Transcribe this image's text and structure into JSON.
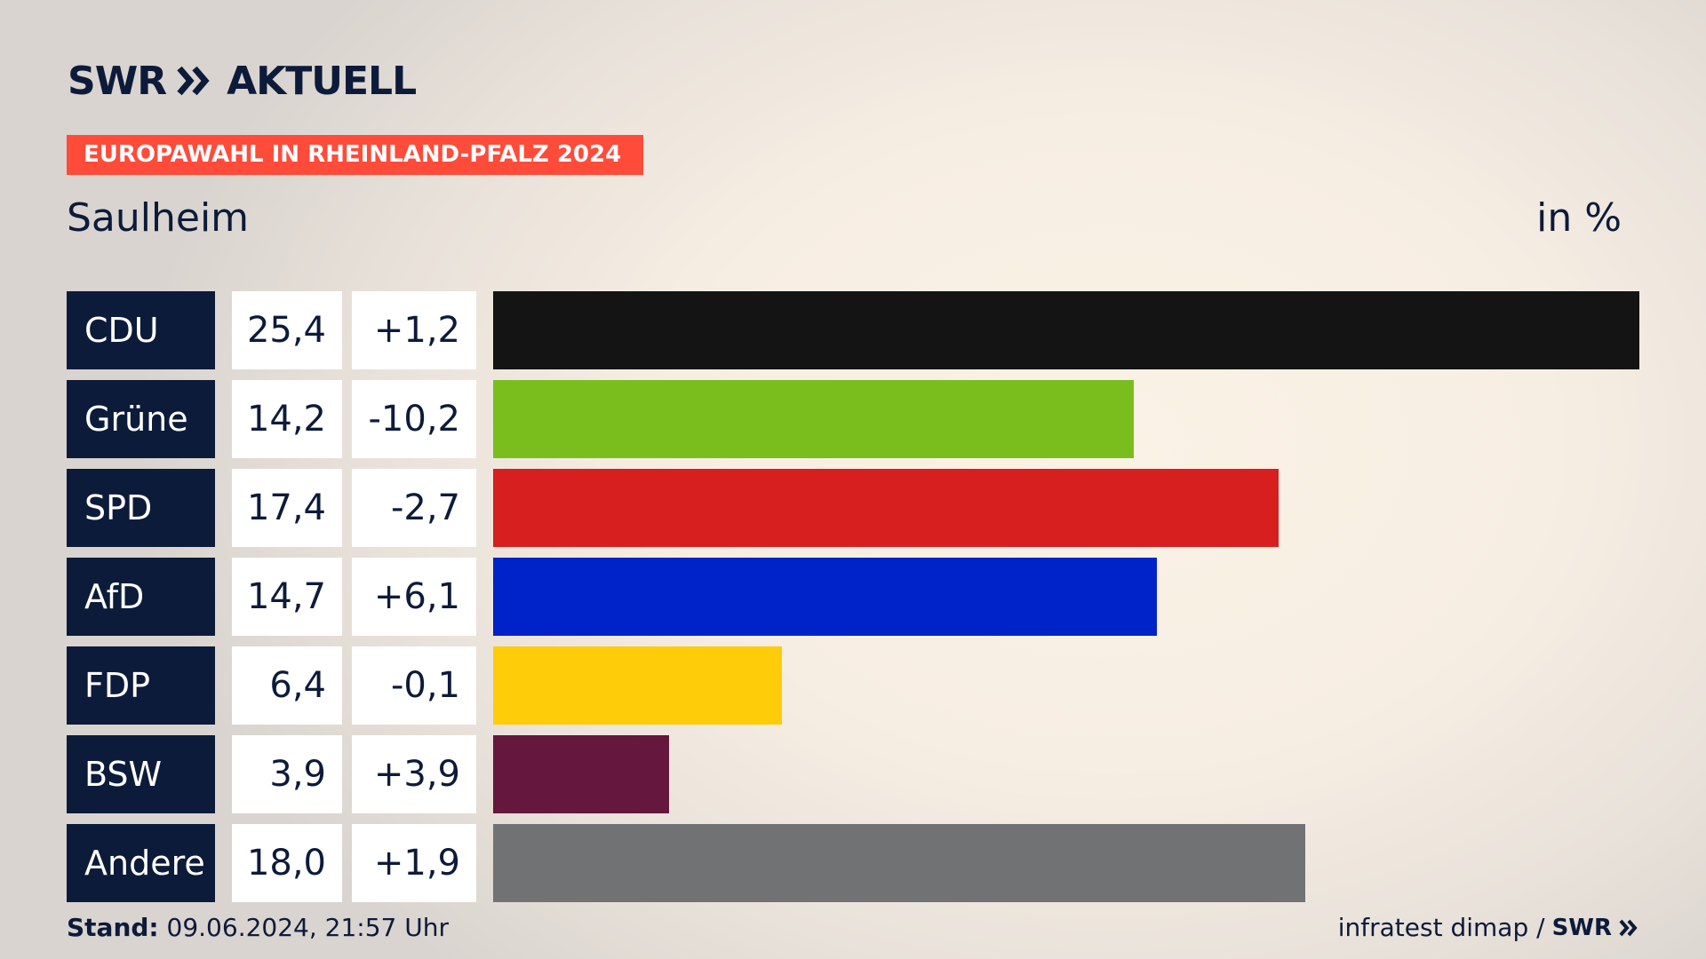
{
  "header": {
    "brand": "SWR",
    "section": "AKTUELL",
    "banner": "EUROPAWAHL IN RHEINLAND-PFALZ 2024",
    "region": "Saulheim",
    "unit": "in %"
  },
  "chart_data": {
    "type": "bar",
    "orientation": "horizontal",
    "title": "",
    "categories": [
      "CDU",
      "Grüne",
      "SPD",
      "AfD",
      "FDP",
      "BSW",
      "Andere"
    ],
    "values": [
      25.4,
      14.2,
      17.4,
      14.7,
      6.4,
      3.9,
      18.0
    ],
    "value_labels": [
      "25,4",
      "14,2",
      "17,4",
      "14,7",
      "6,4",
      "3,9",
      "18,0"
    ],
    "change_labels": [
      "+1,2",
      "-10,2",
      "-2,7",
      "+6,1",
      "-0,1",
      "+3,9",
      "+1,9"
    ],
    "changes": [
      1.2,
      -10.2,
      -2.7,
      6.1,
      -0.1,
      3.9,
      1.9
    ],
    "colors": [
      "#141414",
      "#7abe1d",
      "#d81f1f",
      "#0022c9",
      "#ffcc0a",
      "#65173d",
      "#717274"
    ],
    "xlim": [
      0,
      25.4
    ],
    "grid": false,
    "legend": "none"
  },
  "footer": {
    "stand_label": "Stand:",
    "stand_value": "09.06.2024, 21:57 Uhr",
    "source": "infratest dimap /",
    "source_brand": "SWR"
  }
}
